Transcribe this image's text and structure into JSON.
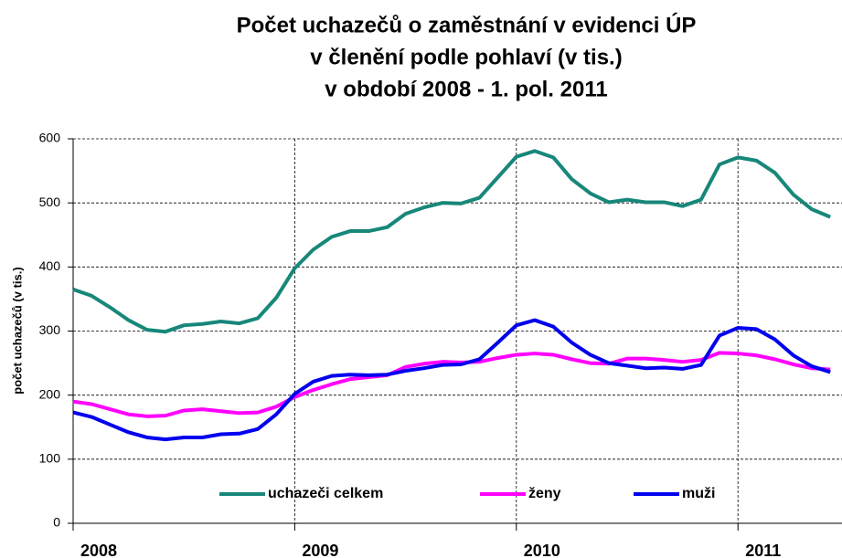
{
  "chart_data": {
    "type": "line",
    "title": [
      "Počet uchazečů o zaměstnání v evidenci ÚP",
      "v členění podle pohlaví (v tis.)",
      "v období 2008 - 1. pol. 2011"
    ],
    "y_label": "počet uchazečů (v tis.)",
    "categories": [
      "2008",
      null,
      null,
      null,
      null,
      null,
      null,
      null,
      null,
      null,
      null,
      null,
      "2009",
      null,
      null,
      null,
      null,
      null,
      null,
      null,
      null,
      null,
      null,
      null,
      "2010",
      null,
      null,
      null,
      null,
      null,
      null,
      null,
      null,
      null,
      null,
      null,
      "2011",
      null,
      null,
      null,
      null,
      null
    ],
    "series": [
      {
        "name": "uchazeči celkem",
        "color": "#17877a",
        "values": [
          365,
          355,
          337,
          317,
          302,
          299,
          309,
          311,
          315,
          312,
          320,
          352,
          398,
          427,
          447,
          456,
          456,
          462,
          483,
          493,
          500,
          499,
          508,
          540,
          572,
          581,
          571,
          537,
          515,
          501,
          505,
          501,
          501,
          495,
          505,
          560,
          571,
          566,
          547,
          513,
          490,
          478
        ]
      },
      {
        "name": "ženy",
        "color": "#ff00ff",
        "values": [
          190,
          186,
          178,
          170,
          167,
          168,
          176,
          178,
          175,
          172,
          173,
          182,
          197,
          208,
          217,
          225,
          228,
          231,
          244,
          249,
          252,
          251,
          252,
          258,
          263,
          265,
          263,
          256,
          250,
          249,
          257,
          257,
          255,
          252,
          255,
          266,
          265,
          262,
          256,
          248,
          242,
          240
        ]
      },
      {
        "name": "muži",
        "color": "#0000ee",
        "values": [
          173,
          166,
          154,
          142,
          134,
          131,
          134,
          134,
          139,
          140,
          147,
          170,
          202,
          221,
          230,
          232,
          231,
          232,
          238,
          242,
          247,
          248,
          256,
          282,
          309,
          317,
          307,
          282,
          263,
          250,
          246,
          242,
          243,
          241,
          247,
          293,
          305,
          303,
          287,
          262,
          245,
          236
        ]
      }
    ],
    "ylim": [
      0,
      600
    ],
    "yticks": [
      0,
      100,
      200,
      300,
      400,
      500,
      600
    ],
    "grid": true,
    "legend": "bottom"
  }
}
